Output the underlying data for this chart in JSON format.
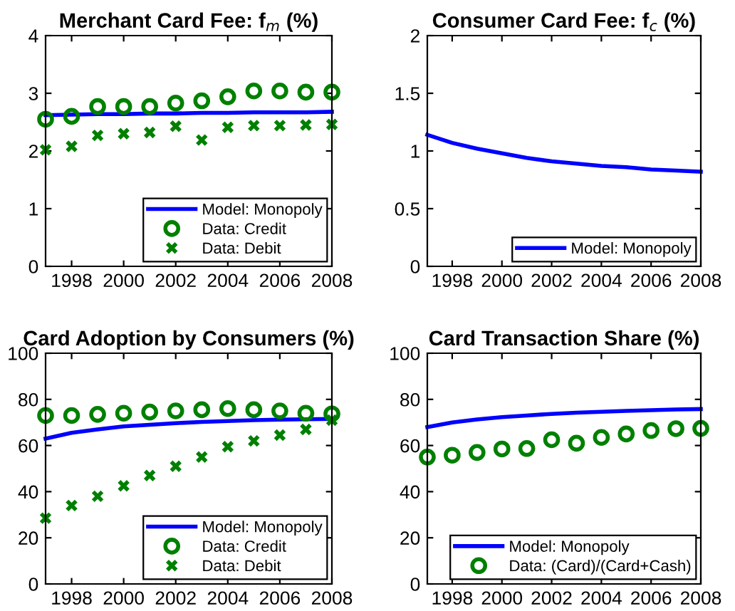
{
  "chart_data": [
    {
      "type": "line",
      "title": "Merchant Card Fee: f$_{m}$ (%)",
      "x": [
        1997,
        1998,
        1999,
        2000,
        2001,
        2002,
        2003,
        2004,
        2005,
        2006,
        2007,
        2008
      ],
      "xlim": [
        1997,
        2008
      ],
      "xticks": [
        1998,
        2000,
        2002,
        2004,
        2006,
        2008
      ],
      "ylim": [
        0,
        4
      ],
      "yticks": [
        0,
        1,
        2,
        3,
        4
      ],
      "grid": false,
      "legend": "bottom right",
      "series": [
        {
          "name": "Model: Monopoly",
          "type": "line",
          "color": "#0000ff",
          "line_style": "solid",
          "marker": "none",
          "values": [
            2.62,
            2.63,
            2.64,
            2.64,
            2.65,
            2.65,
            2.66,
            2.66,
            2.67,
            2.67,
            2.67,
            2.68
          ]
        },
        {
          "name": "Data: Credit",
          "type": "scatter",
          "color": "#008000",
          "marker": "circle",
          "values": [
            2.55,
            2.6,
            2.77,
            2.77,
            2.77,
            2.83,
            2.87,
            2.94,
            3.04,
            3.04,
            3.02,
            3.02
          ]
        },
        {
          "name": "Data: Debit",
          "type": "scatter",
          "color": "#008000",
          "marker": "cross",
          "values": [
            2.02,
            2.08,
            2.27,
            2.3,
            2.32,
            2.43,
            2.19,
            2.41,
            2.44,
            2.44,
            2.45,
            2.46
          ]
        }
      ]
    },
    {
      "type": "line",
      "title": "Consumer Card Fee: f$_{c}$ (%)",
      "x": [
        1997,
        1998,
        1999,
        2000,
        2001,
        2002,
        2003,
        2004,
        2005,
        2006,
        2007,
        2008
      ],
      "xlim": [
        1997,
        2008
      ],
      "xticks": [
        1998,
        2000,
        2002,
        2004,
        2006,
        2008
      ],
      "ylim": [
        0,
        2
      ],
      "yticks": [
        0,
        0.5,
        1,
        1.5,
        2
      ],
      "grid": false,
      "legend": "bottom right",
      "series": [
        {
          "name": "Model: Monopoly",
          "type": "line",
          "color": "#0000ff",
          "line_style": "solid",
          "marker": "none",
          "values": [
            1.14,
            1.07,
            1.02,
            0.98,
            0.94,
            0.91,
            0.89,
            0.87,
            0.86,
            0.84,
            0.83,
            0.82
          ]
        }
      ]
    },
    {
      "type": "line",
      "title": "Card Adoption by Consumers (%)",
      "x": [
        1997,
        1998,
        1999,
        2000,
        2001,
        2002,
        2003,
        2004,
        2005,
        2006,
        2007,
        2008
      ],
      "xlim": [
        1997,
        2008
      ],
      "xticks": [
        1998,
        2000,
        2002,
        2004,
        2006,
        2008
      ],
      "ylim": [
        0,
        100
      ],
      "yticks": [
        0,
        20,
        40,
        60,
        80,
        100
      ],
      "grid": false,
      "legend": "bottom right",
      "series": [
        {
          "name": "Model: Monopoly",
          "type": "line",
          "color": "#0000ff",
          "line_style": "solid",
          "marker": "none",
          "values": [
            63,
            65.5,
            67,
            68.3,
            69,
            69.7,
            70.2,
            70.6,
            71,
            71.2,
            71.4,
            71.5
          ]
        },
        {
          "name": "Data: Credit",
          "type": "scatter",
          "color": "#008000",
          "marker": "circle",
          "values": [
            73,
            73,
            73.5,
            74,
            74.5,
            75,
            75.5,
            76,
            75.5,
            75,
            74,
            73.7
          ]
        },
        {
          "name": "Data: Debit",
          "type": "scatter",
          "color": "#008000",
          "marker": "cross",
          "values": [
            28.5,
            34,
            38,
            42.5,
            47,
            51,
            55,
            59.5,
            62,
            64.5,
            67,
            71
          ]
        }
      ]
    },
    {
      "type": "line",
      "title": "Card Transaction Share (%)",
      "x": [
        1997,
        1998,
        1999,
        2000,
        2001,
        2002,
        2003,
        2004,
        2005,
        2006,
        2007,
        2008
      ],
      "xlim": [
        1997,
        2008
      ],
      "xticks": [
        1998,
        2000,
        2002,
        2004,
        2006,
        2008
      ],
      "ylim": [
        0,
        100
      ],
      "yticks": [
        0,
        20,
        40,
        60,
        80,
        100
      ],
      "grid": false,
      "legend": "bottom right",
      "series": [
        {
          "name": "Model: Monopoly",
          "type": "line",
          "color": "#0000ff",
          "line_style": "solid",
          "marker": "none",
          "values": [
            68,
            70,
            71.3,
            72.3,
            73,
            73.7,
            74.2,
            74.6,
            75,
            75.3,
            75.6,
            75.8
          ]
        },
        {
          "name": "Data: (Card)/(Card+Cash)",
          "type": "scatter",
          "color": "#008000",
          "marker": "circle",
          "values": [
            55,
            55.8,
            57,
            58.5,
            58.7,
            62.5,
            61,
            63.5,
            65,
            66.5,
            67.3,
            67.4
          ]
        }
      ]
    }
  ]
}
